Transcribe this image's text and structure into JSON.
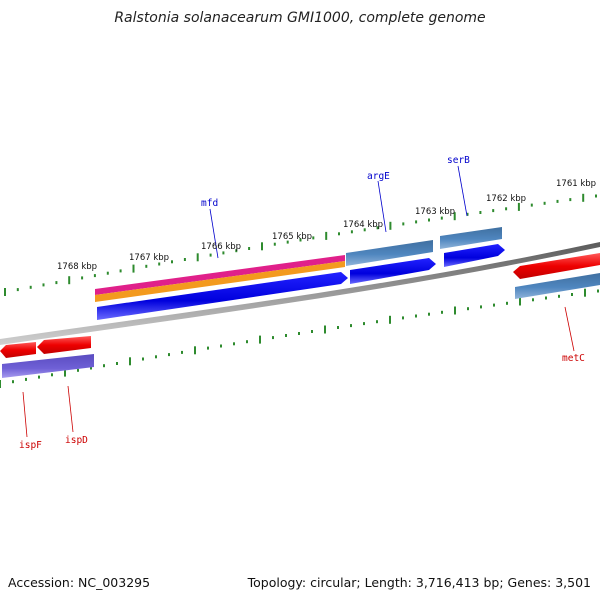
{
  "title": "Ralstonia solanacearum GMI1000, complete genome",
  "footer": {
    "accession": "Accession: NC_003295",
    "summary": "Topology: circular; Length: 3,716,413 bp; Genes: 3,501"
  },
  "ruler_labels": [
    "1768 kbp",
    "1767 kbp",
    "1766 kbp",
    "1765 kbp",
    "1764 kbp",
    "1763 kbp",
    "1762 kbp",
    "1761 kbp"
  ],
  "gene_labels": {
    "mfd": "mfd",
    "argE": "argE",
    "serB": "serB",
    "ispF": "ispF",
    "ispD": "ispD",
    "metC": "metC"
  },
  "colors": {
    "backbone": "#888888",
    "tick": "#2e8b2e",
    "cds_forward": "#0000ee",
    "cds_reverse": "#ee0000",
    "gene_blue": "#4a7fb0",
    "gene_purple": "#6b5ccf",
    "magenta": "#e0208a",
    "orange": "#f39a1e",
    "label_forward": "#0000cc",
    "label_reverse": "#cc0000"
  }
}
